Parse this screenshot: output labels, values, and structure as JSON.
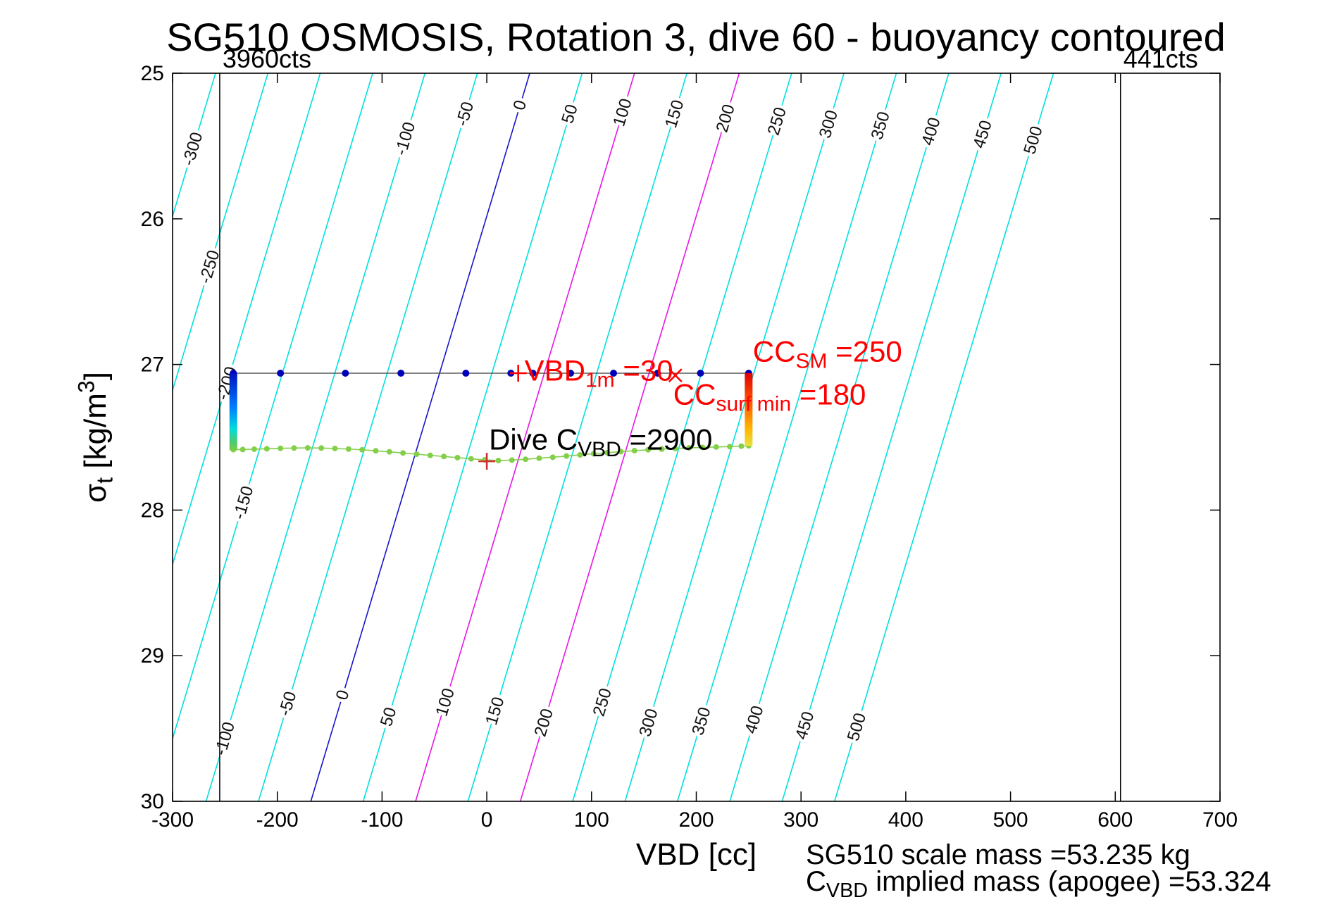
{
  "chart_data": {
    "type": "line",
    "title": "SG510 OSMOSIS, Rotation 3, dive 60 - buoyancy contoured",
    "xlabel": "VBD [cc]",
    "ylabel_parts": [
      {
        "t": "σ"
      },
      {
        "t": "t",
        "sub": true
      },
      {
        "t": " [kg/m"
      },
      {
        "t": "3",
        "sup": true
      },
      {
        "t": "]"
      }
    ],
    "xlim": [
      -300,
      700
    ],
    "ylim": [
      25,
      30
    ],
    "y_axis_direction": "reversed",
    "xticks": [
      -300,
      -200,
      -100,
      0,
      100,
      200,
      300,
      400,
      500,
      600,
      700
    ],
    "yticks": [
      25,
      26,
      27,
      28,
      29,
      30
    ],
    "buoyancy_contours": {
      "unit": "cc",
      "values": [
        -300,
        -250,
        -200,
        -150,
        -100,
        -50,
        0,
        50,
        100,
        150,
        200,
        250,
        300,
        350,
        400,
        450,
        500
      ],
      "vbd_at_sigma25_for_value_0": 41,
      "dvbd_dsigma": -41.8,
      "default_color": "#00e0e0",
      "special_colors": {
        "0": "#1515cc",
        "100": "#e816e8",
        "200": "#e816e8"
      },
      "label_color": "#111111",
      "label_sigmas": {
        "-300": [
          25.52
        ],
        "-250": [
          26.33
        ],
        "-200": [
          27.13
        ],
        "-150": [
          27.95
        ],
        "-100": [
          25.45,
          29.57
        ],
        "-50": [
          25.28,
          29.33
        ],
        "0": [
          25.22,
          29.27
        ],
        "50": [
          25.28,
          29.42
        ],
        "100": [
          25.27,
          29.32
        ],
        "150": [
          25.28,
          29.38
        ],
        "200": [
          25.31,
          29.46
        ],
        "250": [
          25.33,
          29.32
        ],
        "300": [
          25.35,
          29.46
        ],
        "350": [
          25.36,
          29.45
        ],
        "400": [
          25.4,
          29.44
        ],
        "450": [
          25.42,
          29.48
        ],
        "500": [
          25.46,
          29.49
        ]
      }
    },
    "vbd_limit_lines": [
      {
        "vbd": -255,
        "label": "3960cts"
      },
      {
        "vbd": 605,
        "label": "441cts"
      }
    ],
    "surface_track": {
      "sigma": 27.06,
      "vbd_points": [
        -242,
        -197,
        -135,
        -82,
        -20,
        23,
        44,
        80,
        121,
        163,
        204,
        250
      ],
      "dot_color": "#0000b8",
      "line_color": "#3a3a3a"
    },
    "dive_track": {
      "color": "#84cf4a",
      "points": [
        [
          -242,
          27.585
        ],
        [
          -233,
          27.584
        ],
        [
          -222,
          27.582
        ],
        [
          -210,
          27.579
        ],
        [
          -197,
          27.576
        ],
        [
          -184,
          27.574
        ],
        [
          -171,
          27.573
        ],
        [
          -158,
          27.574
        ],
        [
          -145,
          27.577
        ],
        [
          -132,
          27.581
        ],
        [
          -119,
          27.586
        ],
        [
          -106,
          27.593
        ],
        [
          -93,
          27.6
        ],
        [
          -80,
          27.608
        ],
        [
          -67,
          27.616
        ],
        [
          -54,
          27.624
        ],
        [
          -41,
          27.632
        ],
        [
          -28,
          27.64
        ],
        [
          -15,
          27.648
        ],
        [
          -2,
          27.655
        ],
        [
          11,
          27.66
        ],
        [
          24,
          27.657
        ],
        [
          37,
          27.651
        ],
        [
          50,
          27.644
        ],
        [
          63,
          27.637
        ],
        [
          76,
          27.629
        ],
        [
          89,
          27.621
        ],
        [
          102,
          27.613
        ],
        [
          115,
          27.606
        ],
        [
          128,
          27.599
        ],
        [
          141,
          27.592
        ],
        [
          154,
          27.586
        ],
        [
          167,
          27.581
        ],
        [
          180,
          27.577
        ],
        [
          193,
          27.573
        ],
        [
          206,
          27.57
        ],
        [
          219,
          27.567
        ],
        [
          232,
          27.564
        ],
        [
          243,
          27.561
        ],
        [
          250,
          27.558
        ]
      ]
    },
    "descent_colorbar": {
      "vbd": -242,
      "sigma_top": 27.06,
      "sigma_bottom": 27.59,
      "stops": [
        {
          "o": 0,
          "c": "#0010c0"
        },
        {
          "o": 0.45,
          "c": "#0080ff"
        },
        {
          "o": 0.72,
          "c": "#00dcdc"
        },
        {
          "o": 0.9,
          "c": "#4ecb6e"
        },
        {
          "o": 1,
          "c": "#7ccb44"
        }
      ]
    },
    "ascent_colorbar": {
      "vbd": 250,
      "sigma_top": 27.06,
      "sigma_bottom": 27.56,
      "stops": [
        {
          "o": 0,
          "c": "#e00000"
        },
        {
          "o": 0.4,
          "c": "#ff5a00"
        },
        {
          "o": 0.75,
          "c": "#ffb400"
        },
        {
          "o": 1,
          "c": "#e8e040"
        }
      ]
    },
    "markers": [
      {
        "shape": "plus",
        "vbd": 30,
        "sigma": 27.06,
        "color": "#ff0000",
        "name": "vbd-1m-marker"
      },
      {
        "shape": "x",
        "vbd": 180,
        "sigma": 27.075,
        "color": "#ff0000",
        "name": "cc-surf-min-marker"
      },
      {
        "shape": "plus",
        "vbd": 0,
        "sigma": 27.665,
        "color": "#d03030",
        "name": "dive-cvbd-marker"
      }
    ],
    "annotations": [
      {
        "id": "vbd-1m",
        "color": "#ff0000",
        "vbd": 36,
        "sigma": 27.11,
        "parts": [
          {
            "t": "VBD"
          },
          {
            "t": "1m",
            "sub": true
          },
          {
            "t": " =30"
          }
        ]
      },
      {
        "id": "cc-sm",
        "color": "#ff0000",
        "vbd": 254,
        "sigma": 26.98,
        "parts": [
          {
            "t": "CC"
          },
          {
            "t": "SM",
            "sub": true
          },
          {
            "t": " =250"
          }
        ]
      },
      {
        "id": "cc-surf-min",
        "color": "#ff0000",
        "vbd": 178,
        "sigma": 27.275,
        "parts": [
          {
            "t": "CC"
          },
          {
            "t": "surf min",
            "sub": true
          },
          {
            "t": " =180"
          }
        ]
      },
      {
        "id": "dive-cvbd",
        "color": "#000000",
        "vbd": 2,
        "sigma": 27.585,
        "parts": [
          {
            "t": "Dive C"
          },
          {
            "t": "VBD",
            "sub": true
          },
          {
            "t": " =2900"
          }
        ]
      }
    ]
  },
  "footer": {
    "line1": "SG510 scale mass =53.235 kg",
    "line2_parts": [
      {
        "t": "C"
      },
      {
        "t": "VBD",
        "sub": true
      },
      {
        "t": " implied mass (apogee) =53.324"
      }
    ]
  }
}
